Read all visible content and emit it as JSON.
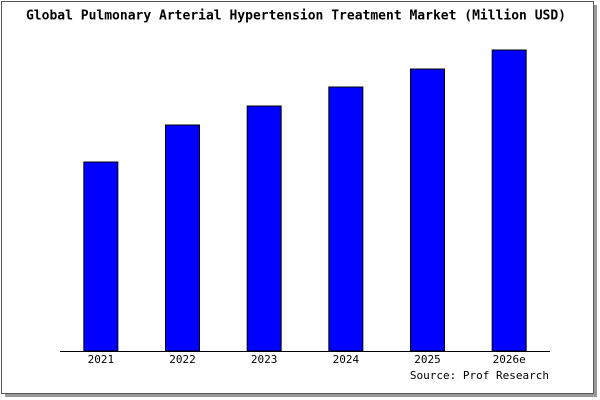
{
  "chart_data": {
    "type": "bar",
    "title": "Global Pulmonary Arterial Hypertension Treatment Market (Million USD)",
    "categories": [
      "2021",
      "2022",
      "2023",
      "2024",
      "2025",
      "2026e"
    ],
    "values": [
      189,
      226,
      245,
      264,
      282,
      301
    ],
    "color": "#0000ff",
    "ylim": [
      0,
      306
    ],
    "source": "Source: Prof Research"
  }
}
